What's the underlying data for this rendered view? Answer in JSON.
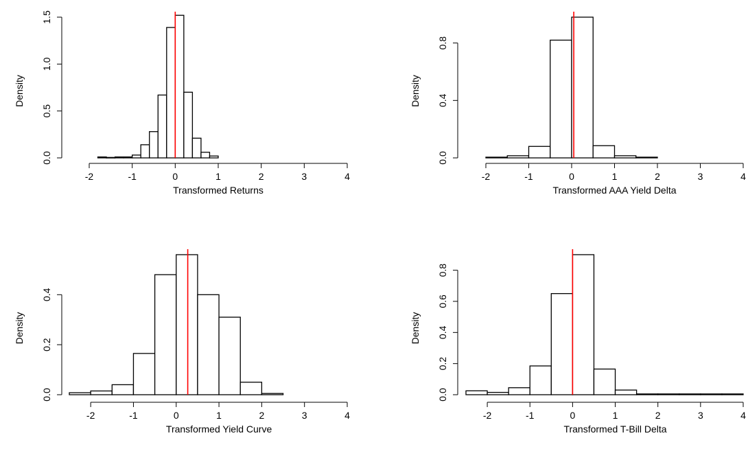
{
  "colors": {
    "bar_fill": "#ffffff",
    "bar_stroke": "#000000",
    "reference_line": "#ff0000"
  },
  "chart_data": [
    {
      "type": "bar",
      "subtype": "histogram",
      "xlabel": "Transformed Returns",
      "ylabel": "Density",
      "xlim": [
        -2,
        4
      ],
      "ylim": [
        0,
        1.5
      ],
      "xticks": [
        -2,
        -1,
        0,
        1,
        2,
        3,
        4
      ],
      "yticks": [
        0.0,
        0.5,
        1.0,
        1.5
      ],
      "ytick_labels": [
        "0.0",
        "0.5",
        "1.0",
        "1.5"
      ],
      "bin_edges": [
        -1.8,
        -1.6,
        -1.4,
        -1.2,
        -1.0,
        -0.8,
        -0.6,
        -0.4,
        -0.2,
        0.0,
        0.2,
        0.4,
        0.6,
        0.8,
        1.0
      ],
      "values": [
        0.01,
        0.005,
        0.01,
        0.01,
        0.03,
        0.14,
        0.28,
        0.67,
        1.39,
        1.52,
        0.7,
        0.21,
        0.06,
        0.02
      ],
      "reference_line_x": 0.0
    },
    {
      "type": "bar",
      "subtype": "histogram",
      "xlabel": "Transformed AAA Yield Delta",
      "ylabel": "Density",
      "xlim": [
        -2,
        4
      ],
      "ylim": [
        0,
        0.98
      ],
      "xticks": [
        -2,
        -1,
        0,
        1,
        2,
        3,
        4
      ],
      "yticks": [
        0.0,
        0.4,
        0.8
      ],
      "ytick_labels": [
        "0.0",
        "0.4",
        "0.8"
      ],
      "bin_edges": [
        -2.0,
        -1.5,
        -1.0,
        -0.5,
        0.0,
        0.5,
        1.0,
        1.5,
        2.0
      ],
      "values": [
        0.005,
        0.015,
        0.08,
        0.82,
        0.98,
        0.085,
        0.015,
        0.005
      ],
      "reference_line_x": 0.05
    },
    {
      "type": "bar",
      "subtype": "histogram",
      "xlabel": "Transformed Yield Curve",
      "ylabel": "Density",
      "xlim": [
        -2.5,
        4
      ],
      "ylim": [
        0,
        0.56
      ],
      "xticks": [
        -2,
        -1,
        0,
        1,
        2,
        3,
        4
      ],
      "yticks": [
        0.0,
        0.2,
        0.4
      ],
      "ytick_labels": [
        "0.0",
        "0.2",
        "0.4"
      ],
      "bin_edges": [
        -2.5,
        -2.0,
        -1.5,
        -1.0,
        -0.5,
        0.0,
        0.5,
        1.0,
        1.5,
        2.0,
        2.5
      ],
      "values": [
        0.008,
        0.015,
        0.04,
        0.165,
        0.48,
        0.56,
        0.4,
        0.31,
        0.05,
        0.005
      ],
      "reference_line_x": 0.27
    },
    {
      "type": "bar",
      "subtype": "histogram",
      "xlabel": "Transformed T-Bill Delta",
      "ylabel": "Density",
      "xlim": [
        -2.5,
        4
      ],
      "ylim": [
        0,
        0.9
      ],
      "xticks": [
        -2,
        -1,
        0,
        1,
        2,
        3,
        4
      ],
      "yticks": [
        0.0,
        0.2,
        0.4,
        0.6,
        0.8
      ],
      "ytick_labels": [
        "0.0",
        "0.2",
        "0.4",
        "0.6",
        "0.8"
      ],
      "bin_edges": [
        -2.5,
        -2.0,
        -1.5,
        -1.0,
        -0.5,
        0.0,
        0.5,
        1.0,
        1.5,
        2.0,
        2.5,
        3.0,
        3.5,
        4.0
      ],
      "values": [
        0.025,
        0.015,
        0.045,
        0.185,
        0.65,
        0.9,
        0.165,
        0.03,
        0.005,
        0.005,
        0.005,
        0.005,
        0.005
      ],
      "reference_line_x": 0.0
    }
  ]
}
